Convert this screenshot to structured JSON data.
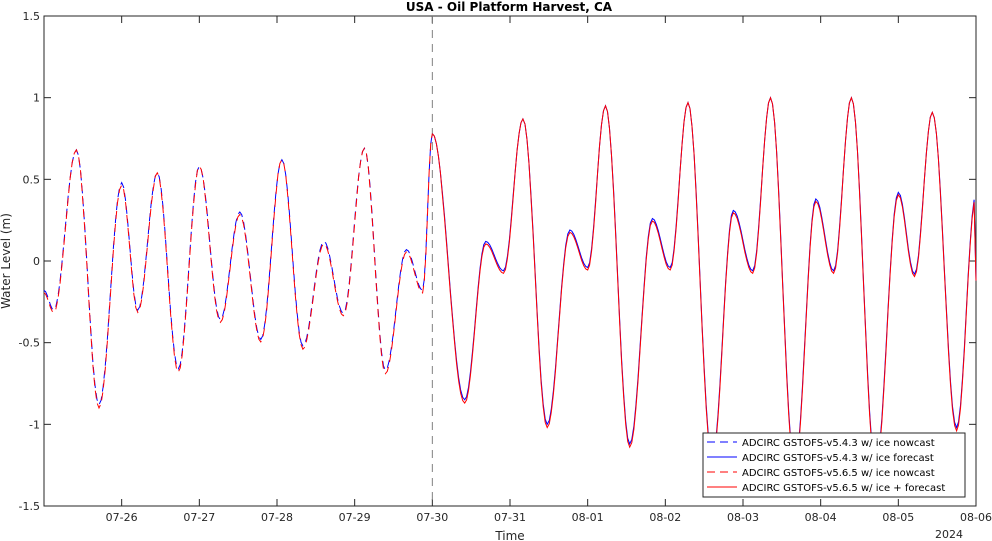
{
  "chart_data": {
    "type": "line",
    "title": "USA - Oil Platform Harvest, CA",
    "xlabel": "Time",
    "ylabel": "Water Level (m)",
    "year_label": "2024",
    "x_ticks": [
      "07-26",
      "07-27",
      "07-28",
      "07-29",
      "07-30",
      "07-31",
      "08-01",
      "08-02",
      "08-03",
      "08-04",
      "08-05",
      "08-06"
    ],
    "y_ticks": [
      "1.5",
      "1",
      "0.5",
      "0",
      "-0.5",
      "-1",
      "-1.5"
    ],
    "y_tick_values": [
      1.5,
      1,
      0.5,
      0,
      -0.5,
      -1,
      -1.5
    ],
    "xlim": [
      "2024-07-25 00:00",
      "2024-08-06 00:00"
    ],
    "ylim": [
      -1.5,
      1.5
    ],
    "grid": false,
    "legend_position": "bottom-right",
    "nowcast_forecast_divider": "2024-07-30 00:00",
    "colors": {
      "blue": "#0000ff",
      "red": "#ff0000",
      "axis": "#262626",
      "divider": "#808080"
    },
    "extrema": [
      {
        "t": "2024-07-25 00:00",
        "y": -0.18
      },
      {
        "t": "2024-07-25 03:00",
        "y": -0.3
      },
      {
        "t": "2024-07-25 10:00",
        "y": 0.68
      },
      {
        "t": "2024-07-25 17:00",
        "y": -0.88
      },
      {
        "t": "2024-07-26 00:00",
        "y": 0.48
      },
      {
        "t": "2024-07-26 05:00",
        "y": -0.3
      },
      {
        "t": "2024-07-26 11:00",
        "y": 0.54
      },
      {
        "t": "2024-07-26 17:30",
        "y": -0.66
      },
      {
        "t": "2024-07-27 00:00",
        "y": 0.58
      },
      {
        "t": "2024-07-27 06:30",
        "y": -0.36
      },
      {
        "t": "2024-07-27 12:30",
        "y": 0.3
      },
      {
        "t": "2024-07-27 19:00",
        "y": -0.48
      },
      {
        "t": "2024-07-28 01:30",
        "y": 0.62
      },
      {
        "t": "2024-07-28 08:00",
        "y": -0.52
      },
      {
        "t": "2024-07-28 14:30",
        "y": 0.12
      },
      {
        "t": "2024-07-28 20:30",
        "y": -0.32
      },
      {
        "t": "2024-07-29 03:00",
        "y": 0.69
      },
      {
        "t": "2024-07-29 09:30",
        "y": -0.67
      },
      {
        "t": "2024-07-29 16:00",
        "y": 0.07
      },
      {
        "t": "2024-07-29 21:00",
        "y": -0.18
      },
      {
        "t": "2024-07-30 00:00",
        "y": 0.78
      },
      {
        "t": "2024-07-30 10:00",
        "y": -0.85
      },
      {
        "t": "2024-07-30 16:30",
        "y": 0.12
      },
      {
        "t": "2024-07-30 22:00",
        "y": -0.06
      },
      {
        "t": "2024-07-31 04:00",
        "y": 0.87
      },
      {
        "t": "2024-07-31 11:30",
        "y": -1.0
      },
      {
        "t": "2024-07-31 18:30",
        "y": 0.19
      },
      {
        "t": "2024-08-01 00:00",
        "y": -0.04
      },
      {
        "t": "2024-08-01 05:30",
        "y": 0.95
      },
      {
        "t": "2024-08-01 13:00",
        "y": -1.12
      },
      {
        "t": "2024-08-01 20:00",
        "y": 0.26
      },
      {
        "t": "2024-08-02 01:30",
        "y": -0.04
      },
      {
        "t": "2024-08-02 07:00",
        "y": 0.97
      },
      {
        "t": "2024-08-02 14:30",
        "y": -1.2
      },
      {
        "t": "2024-08-02 21:00",
        "y": 0.31
      },
      {
        "t": "2024-08-03 03:00",
        "y": -0.06
      },
      {
        "t": "2024-08-03 08:30",
        "y": 1.0
      },
      {
        "t": "2024-08-03 16:00",
        "y": -1.25
      },
      {
        "t": "2024-08-03 22:30",
        "y": 0.38
      },
      {
        "t": "2024-08-04 04:00",
        "y": -0.06
      },
      {
        "t": "2024-08-04 09:30",
        "y": 1.0
      },
      {
        "t": "2024-08-04 17:00",
        "y": -1.25
      },
      {
        "t": "2024-08-05 00:00",
        "y": 0.42
      },
      {
        "t": "2024-08-05 05:00",
        "y": -0.08
      },
      {
        "t": "2024-08-05 10:30",
        "y": 0.91
      },
      {
        "t": "2024-08-05 18:00",
        "y": -1.02
      },
      {
        "t": "2024-08-06 00:00",
        "y": 0.41
      },
      {
        "t": "2024-08-06 00:00",
        "y": -0.12
      }
    ],
    "series": [
      {
        "name": "ADCIRC GSTOFS-v5.4.3 w/ ice nowcast",
        "color": "#0000ff",
        "style": "dashed",
        "segment": "nowcast"
      },
      {
        "name": "ADCIRC GSTOFS-v5.4.3 w/ ice forecast",
        "color": "#0000ff",
        "style": "solid",
        "segment": "forecast"
      },
      {
        "name": "ADCIRC GSTOFS-v5.6.5 w/ ice nowcast",
        "color": "#ff0000",
        "style": "dashed",
        "segment": "nowcast"
      },
      {
        "name": "ADCIRC GSTOFS-v5.6.5 w/ ice + forecast",
        "color": "#ff0000",
        "style": "solid",
        "segment": "forecast"
      }
    ]
  }
}
